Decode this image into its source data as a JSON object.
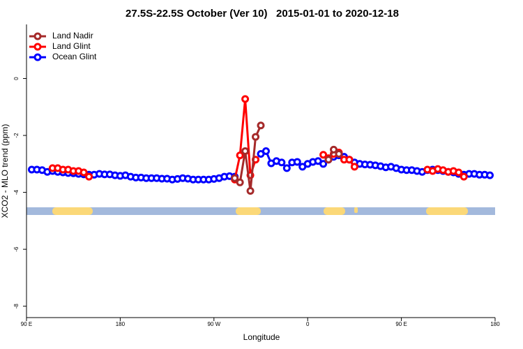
{
  "chart_data": {
    "type": "line",
    "title": "27.5S-22.5S October (Ver 10)   2015-01-01 to 2020-12-18",
    "x_label": "Longitude",
    "y_label": "XCO2 - MLO trend (ppm)",
    "xlim": [
      90,
      540
    ],
    "ylim": [
      -8.4,
      1.9
    ],
    "xticks": [
      {
        "value": 90,
        "label": "90 E"
      },
      180,
      {
        "value": 270,
        "label": "90 W"
      },
      {
        "value": 360,
        "label": "0"
      },
      {
        "value": 450,
        "label": "90 E"
      },
      {
        "value": 540,
        "label": "180"
      }
    ],
    "yticks": [
      0,
      -2,
      -4,
      -6,
      -8
    ],
    "legend": "top-left",
    "x": [
      95,
      100,
      105,
      110,
      115,
      120,
      125,
      130,
      135,
      140,
      145,
      150,
      155,
      160,
      165,
      170,
      175,
      180,
      185,
      190,
      195,
      200,
      205,
      210,
      215,
      220,
      225,
      230,
      235,
      240,
      245,
      250,
      255,
      260,
      265,
      270,
      275,
      280,
      285,
      290,
      295,
      300,
      305,
      310,
      315,
      320,
      325,
      330,
      335,
      340,
      345,
      350,
      355,
      360,
      365,
      370,
      375,
      380,
      385,
      390,
      395,
      400,
      405,
      410,
      415,
      420,
      425,
      430,
      435,
      440,
      445,
      450,
      455,
      460,
      465,
      470,
      475,
      480,
      485,
      490,
      495,
      500,
      505,
      510,
      515,
      520,
      525,
      530,
      535
    ],
    "series": [
      {
        "name": "Land Nadir",
        "color": "#a52a2a",
        "values": [
          null,
          null,
          null,
          null,
          null,
          null,
          null,
          null,
          null,
          null,
          null,
          null,
          null,
          null,
          null,
          null,
          null,
          null,
          null,
          null,
          null,
          null,
          null,
          null,
          null,
          null,
          null,
          null,
          null,
          null,
          null,
          null,
          null,
          null,
          null,
          null,
          null,
          null,
          null,
          -3.5,
          -3.65,
          -2.55,
          -3.95,
          -2.05,
          -1.65,
          null,
          null,
          null,
          null,
          null,
          null,
          null,
          null,
          null,
          null,
          null,
          null,
          -2.85,
          -2.5,
          -2.65,
          null,
          null,
          null,
          null,
          null,
          null,
          null,
          null,
          null,
          null,
          null,
          null,
          null,
          null,
          null,
          null,
          null,
          null,
          null,
          null,
          null,
          null,
          null,
          null,
          null,
          null,
          null,
          null,
          null
        ]
      },
      {
        "name": "Land Glint",
        "color": "#ff0000",
        "values": [
          null,
          null,
          null,
          null,
          -3.15,
          -3.15,
          -3.2,
          -3.2,
          -3.25,
          -3.25,
          -3.3,
          -3.45,
          null,
          null,
          null,
          null,
          null,
          null,
          null,
          null,
          null,
          null,
          null,
          null,
          null,
          null,
          null,
          null,
          null,
          null,
          null,
          null,
          null,
          null,
          null,
          null,
          null,
          null,
          null,
          -3.55,
          -2.7,
          -0.72,
          -3.4,
          -2.85,
          null,
          null,
          null,
          null,
          null,
          null,
          null,
          null,
          null,
          null,
          null,
          null,
          -2.68,
          -2.8,
          -2.65,
          -2.6,
          -2.85,
          -2.85,
          -3.1,
          null,
          null,
          null,
          null,
          null,
          null,
          null,
          null,
          null,
          null,
          null,
          null,
          null,
          -3.2,
          -3.25,
          -3.18,
          -3.22,
          -3.28,
          -3.25,
          -3.3,
          -3.45,
          null,
          null,
          null,
          null,
          null
        ]
      },
      {
        "name": "Ocean Glint",
        "color": "#0000ff",
        "values": [
          -3.2,
          -3.2,
          -3.22,
          -3.28,
          -3.25,
          -3.28,
          -3.3,
          -3.32,
          -3.33,
          -3.35,
          -3.37,
          -3.38,
          -3.38,
          -3.35,
          -3.37,
          -3.37,
          -3.4,
          -3.42,
          -3.4,
          -3.45,
          -3.48,
          -3.48,
          -3.5,
          -3.5,
          -3.5,
          -3.52,
          -3.52,
          -3.55,
          -3.53,
          -3.5,
          -3.52,
          -3.55,
          -3.55,
          -3.55,
          -3.55,
          -3.53,
          -3.5,
          -3.45,
          -3.43,
          -3.45,
          null,
          null,
          null,
          null,
          -2.65,
          -2.55,
          -2.98,
          -2.9,
          -2.95,
          -3.15,
          -2.95,
          -2.93,
          -3.1,
          -3.0,
          -2.93,
          -2.9,
          -3.0,
          -2.85,
          -2.75,
          -2.7,
          -2.75,
          -2.85,
          -2.95,
          -3.0,
          -3.02,
          -3.03,
          -3.05,
          -3.08,
          -3.12,
          -3.1,
          -3.15,
          -3.2,
          -3.22,
          -3.22,
          -3.25,
          -3.28,
          -3.22,
          -3.2,
          -3.22,
          -3.25,
          -3.28,
          -3.3,
          -3.35,
          -3.38,
          -3.35,
          -3.35,
          -3.38,
          -3.38,
          -3.4
        ]
      }
    ],
    "draw_order": [
      2,
      1,
      0
    ]
  }
}
